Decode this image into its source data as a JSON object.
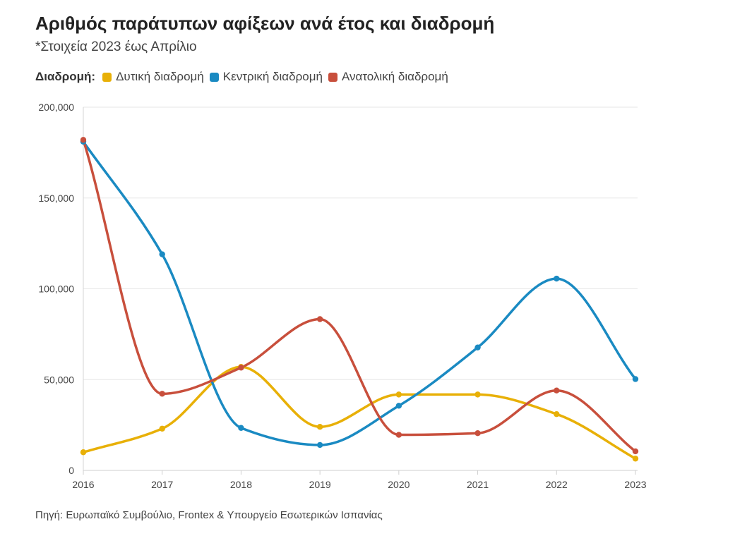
{
  "header": {
    "title": "Αριθμός παράτυπων αφίξεων ανά έτος και διαδρομή",
    "subtitle": "*Στοιχεία 2023 έως Απρίλιο"
  },
  "legend": {
    "title": "Διαδρομή:",
    "placement": "top-left"
  },
  "footer": {
    "source": "Πηγή: Ευρωπαϊκό Συμβούλιο, Frontex & Υπουργείο Εσωτερικών Ισπανίας"
  },
  "chart_data": {
    "type": "line",
    "x": [
      "2016",
      "2017",
      "2018",
      "2019",
      "2020",
      "2021",
      "2022",
      "2023"
    ],
    "ylim": [
      0,
      200000
    ],
    "yticks": [
      0,
      50000,
      100000,
      150000,
      200000
    ],
    "ytick_labels": [
      "0",
      "50,000",
      "100,000",
      "150,000",
      "200,000"
    ],
    "grid": true,
    "title": "Αριθμός παράτυπων αφίξεων ανά έτος και διαδρομή",
    "xlabel": "",
    "ylabel": "",
    "series": [
      {
        "name": "Δυτική διαδρομή",
        "color": "#e8b007",
        "values": [
          10000,
          23000,
          57000,
          24000,
          41800,
          41800,
          31000,
          6500
        ]
      },
      {
        "name": "Κεντρική διαδρομή",
        "color": "#1a8ac2",
        "values": [
          181000,
          119000,
          23400,
          14000,
          35600,
          67700,
          105600,
          50300
        ]
      },
      {
        "name": "Ανατολική διαδρομή",
        "color": "#c84f3c",
        "values": [
          182000,
          42200,
          56600,
          83300,
          19600,
          20500,
          44000,
          10500
        ]
      }
    ]
  }
}
